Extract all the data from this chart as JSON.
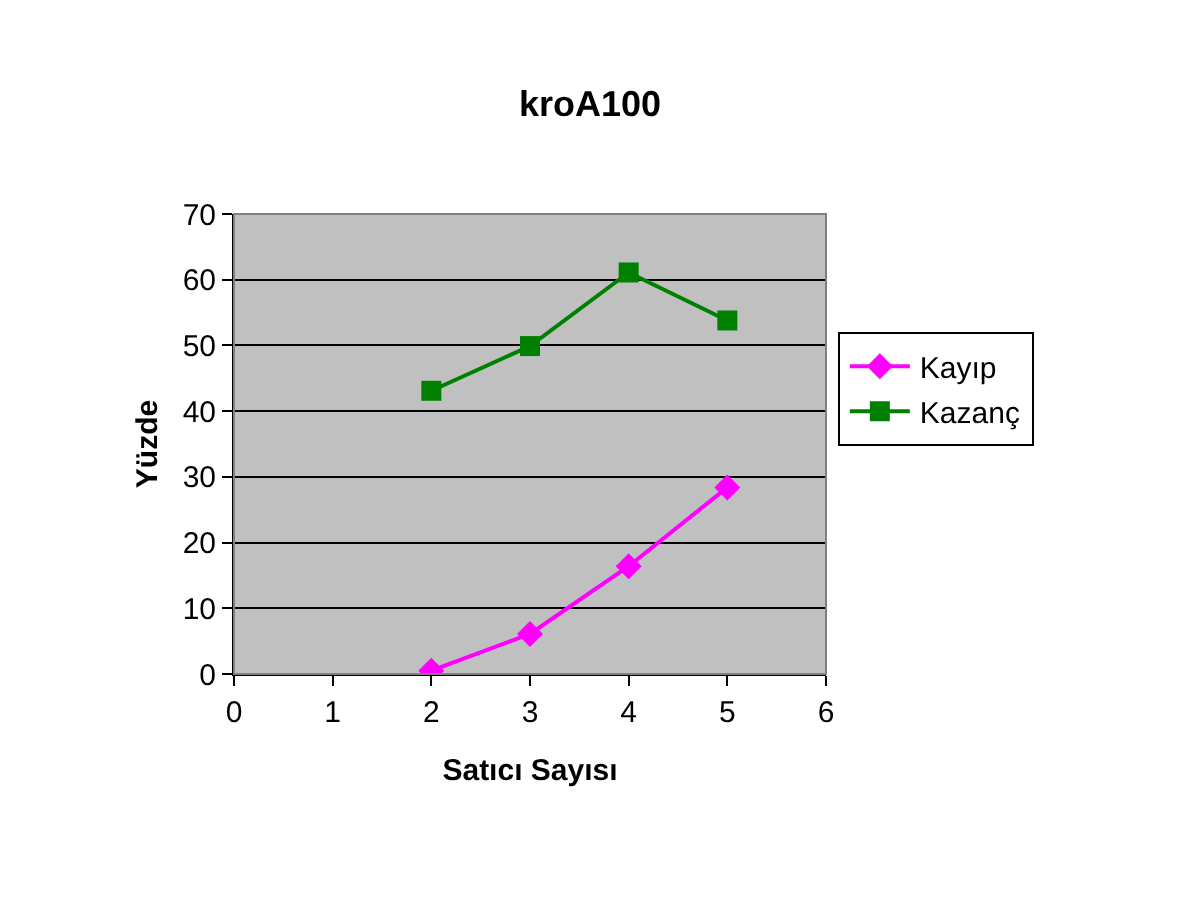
{
  "chart_data": {
    "type": "line",
    "title": "kroA100",
    "xlabel": "Satıcı Sayısı",
    "ylabel": "Yüzde",
    "xlim": [
      0,
      6
    ],
    "xticks": [
      0,
      1,
      2,
      3,
      4,
      5,
      6
    ],
    "ylim": [
      0,
      70
    ],
    "yticks": [
      0,
      10,
      20,
      30,
      40,
      50,
      60,
      70
    ],
    "grid": "y",
    "legend": "right",
    "series": [
      {
        "name": "Kayıp",
        "color": "#ff00ff",
        "marker": "diamond",
        "x": [
          2,
          3,
          4,
          5
        ],
        "values": [
          0.5,
          6.1,
          16.4,
          28.4
        ]
      },
      {
        "name": "Kazanç",
        "color": "#008000",
        "marker": "square",
        "x": [
          2,
          3,
          4,
          5
        ],
        "values": [
          43.1,
          49.9,
          61.1,
          53.8
        ]
      }
    ]
  }
}
